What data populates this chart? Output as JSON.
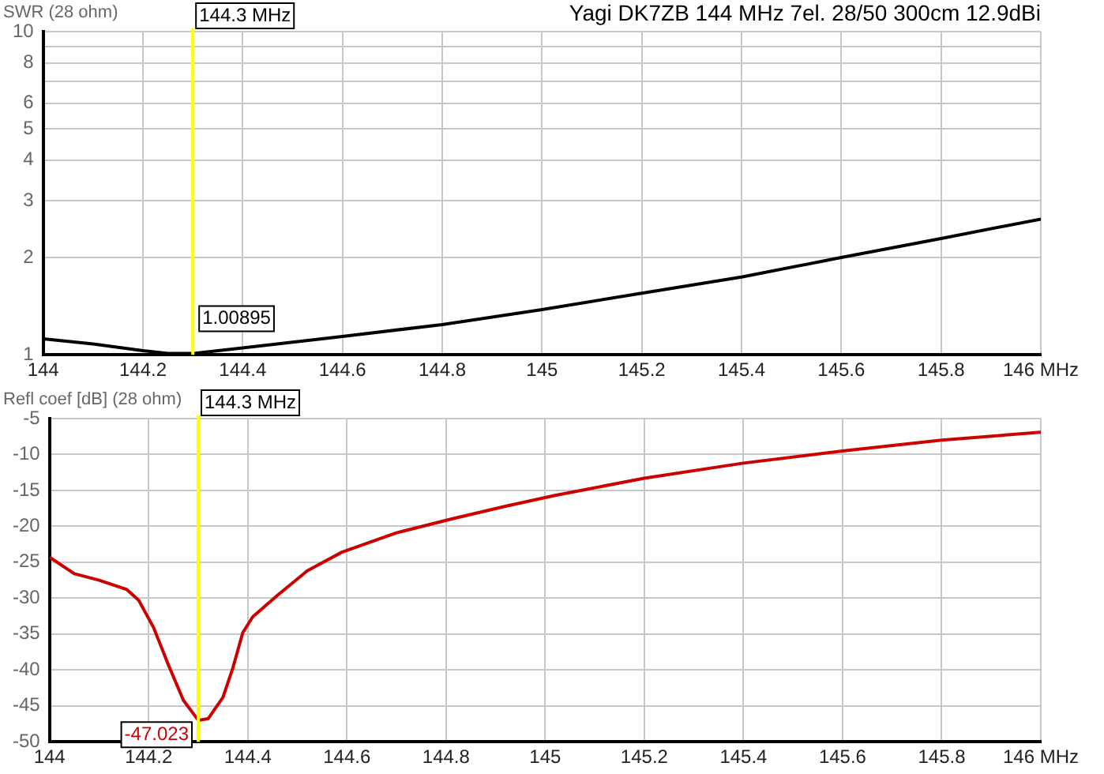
{
  "chart_data": [
    {
      "type": "line",
      "title": "Yagi DK7ZB 144 MHz 7el. 28/50 300cm 12.9dBi",
      "ylabel": "SWR (28 ohm)",
      "log": true,
      "grid": true,
      "marker": "none",
      "line_style": "solid",
      "x": [
        144,
        144.1,
        144.2,
        144.25,
        144.3,
        144.4,
        144.6,
        144.8,
        145,
        145.2,
        145.4,
        145.6,
        145.8,
        146
      ],
      "series": [
        {
          "color": "#000000",
          "values": [
            1.12,
            1.08,
            1.03,
            1.01,
            1.00895,
            1.05,
            1.14,
            1.24,
            1.38,
            1.55,
            1.74,
            2.0,
            2.29,
            2.63
          ]
        }
      ],
      "xlim": [
        144,
        146
      ],
      "xticks": [
        144,
        144.2,
        144.4,
        144.6,
        144.8,
        145,
        145.2,
        145.4,
        145.6,
        145.8,
        {
          "value": 146,
          "label": "146 MHz"
        }
      ],
      "ylim": [
        1,
        10
      ],
      "yticks": [
        1,
        2,
        3,
        4,
        5,
        6,
        {
          "value": 7,
          "label": null
        },
        8,
        {
          "value": 9,
          "label": null
        },
        10
      ],
      "ref_lines": [
        {
          "axis": "x",
          "value": 144.3,
          "label": "144.3 MHz",
          "color": "#ffff00"
        }
      ],
      "annotations": [
        {
          "text": "1.00895",
          "x": 144.3,
          "y": 1.00895
        }
      ]
    },
    {
      "type": "line",
      "ylabel": "Refl coef [dB] (28 ohm)",
      "grid": true,
      "marker": "none",
      "line_style": "solid",
      "x": [
        144,
        144.05,
        144.1,
        144.156,
        144.18,
        144.21,
        144.24,
        144.27,
        144.3,
        144.32,
        144.35,
        144.37,
        144.39,
        144.41,
        144.46,
        144.52,
        144.59,
        144.7,
        144.81,
        144.92,
        145.02,
        145.2,
        145.4,
        145.6,
        145.8,
        146
      ],
      "series": [
        {
          "color": "#cc0000",
          "values": [
            -24.3,
            -26.6,
            -27.5,
            -28.8,
            -30.3,
            -34.1,
            -39.3,
            -44.2,
            -47.0,
            -46.8,
            -43.8,
            -39.7,
            -34.8,
            -32.6,
            -29.6,
            -26.2,
            -23.6,
            -20.9,
            -19.0,
            -17.2,
            -15.7,
            -13.3,
            -11.2,
            -9.5,
            -8.0,
            -6.9
          ]
        }
      ],
      "xlim": [
        144,
        146
      ],
      "xticks": [
        144,
        144.2,
        144.4,
        144.6,
        144.8,
        145,
        145.2,
        145.4,
        145.6,
        145.8,
        {
          "value": 146,
          "label": "146 MHz"
        }
      ],
      "ylim": [
        -50,
        -5
      ],
      "yticks": [
        -50,
        -45,
        -40,
        -35,
        -30,
        -25,
        -20,
        -15,
        -10,
        -5
      ],
      "ref_lines": [
        {
          "axis": "x",
          "value": 144.3,
          "label": "144.3 MHz",
          "color": "#ffff00"
        }
      ],
      "annotations": [
        {
          "text": "-47.023",
          "x": 144.3,
          "y": -47.023
        }
      ]
    }
  ]
}
